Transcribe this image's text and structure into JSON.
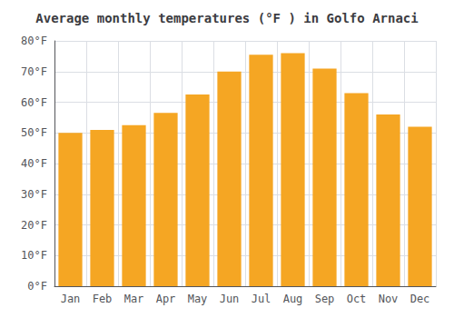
{
  "chart_data": {
    "type": "bar",
    "title": "Average monthly temperatures (°F ) in Golfo Arnaci",
    "categories": [
      "Jan",
      "Feb",
      "Mar",
      "Apr",
      "May",
      "Jun",
      "Jul",
      "Aug",
      "Sep",
      "Oct",
      "Nov",
      "Dec"
    ],
    "values": [
      50,
      51,
      52.5,
      56.5,
      62.5,
      70,
      75.5,
      76,
      71,
      63,
      56,
      52
    ],
    "color": "#F5A623",
    "ylim": [
      0,
      80
    ],
    "yticks": [
      {
        "value": 0,
        "label": "0°F"
      },
      {
        "value": 10,
        "label": "10°F"
      },
      {
        "value": 20,
        "label": "20°F"
      },
      {
        "value": 30,
        "label": "30°F"
      },
      {
        "value": 40,
        "label": "40°F"
      },
      {
        "value": 50,
        "label": "50°F"
      },
      {
        "value": 60,
        "label": "60°F"
      },
      {
        "value": 70,
        "label": "70°F"
      },
      {
        "value": 80,
        "label": "80°F"
      }
    ],
    "grid": true
  }
}
